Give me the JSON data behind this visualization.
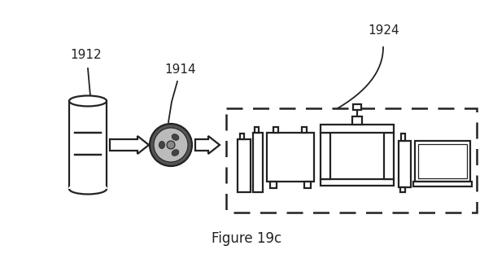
{
  "title": "Figure 19c",
  "label_1912": "1912",
  "label_1914": "1914",
  "label_1924": "1924",
  "bg_color": "#ffffff",
  "line_color": "#222222",
  "fig_width": 6.06,
  "fig_height": 3.23,
  "dpi": 100
}
